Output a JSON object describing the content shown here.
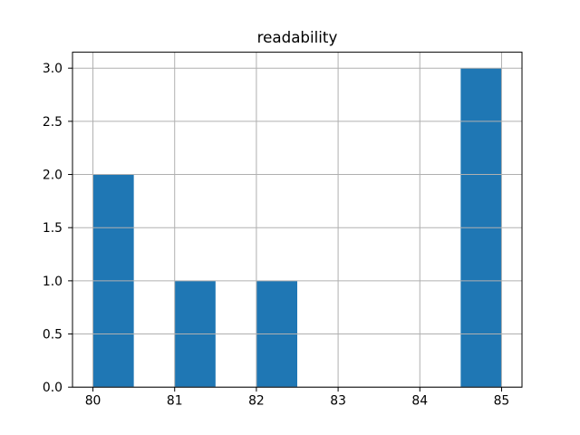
{
  "figure": {
    "background": "#ffffff"
  },
  "chart_data": {
    "type": "bar",
    "subtype": "histogram",
    "title": "readability",
    "xlabel": "",
    "ylabel": "",
    "bin_edges": [
      80,
      80.5,
      81,
      81.5,
      82,
      82.5,
      83,
      83.5,
      84,
      84.5,
      85
    ],
    "counts": [
      2,
      0,
      1,
      0,
      1,
      0,
      0,
      0,
      0,
      3
    ],
    "xticks": [
      80,
      81,
      82,
      83,
      84,
      85
    ],
    "xtick_labels": [
      "80",
      "81",
      "82",
      "83",
      "84",
      "85"
    ],
    "yticks": [
      0.0,
      0.5,
      1.0,
      1.5,
      2.0,
      2.5,
      3.0
    ],
    "ytick_labels": [
      "0.0",
      "0.5",
      "1.0",
      "1.5",
      "2.0",
      "2.5",
      "3.0"
    ],
    "xlim": [
      79.75,
      85.25
    ],
    "ylim": [
      0,
      3.15
    ],
    "grid": true,
    "grid_on_top_of_bars": true,
    "legend": null,
    "colors": {
      "bar": "#1f77b4",
      "grid": "#b0b0b0",
      "spine": "#000000",
      "tick": "#000000",
      "text": "#000000"
    }
  }
}
